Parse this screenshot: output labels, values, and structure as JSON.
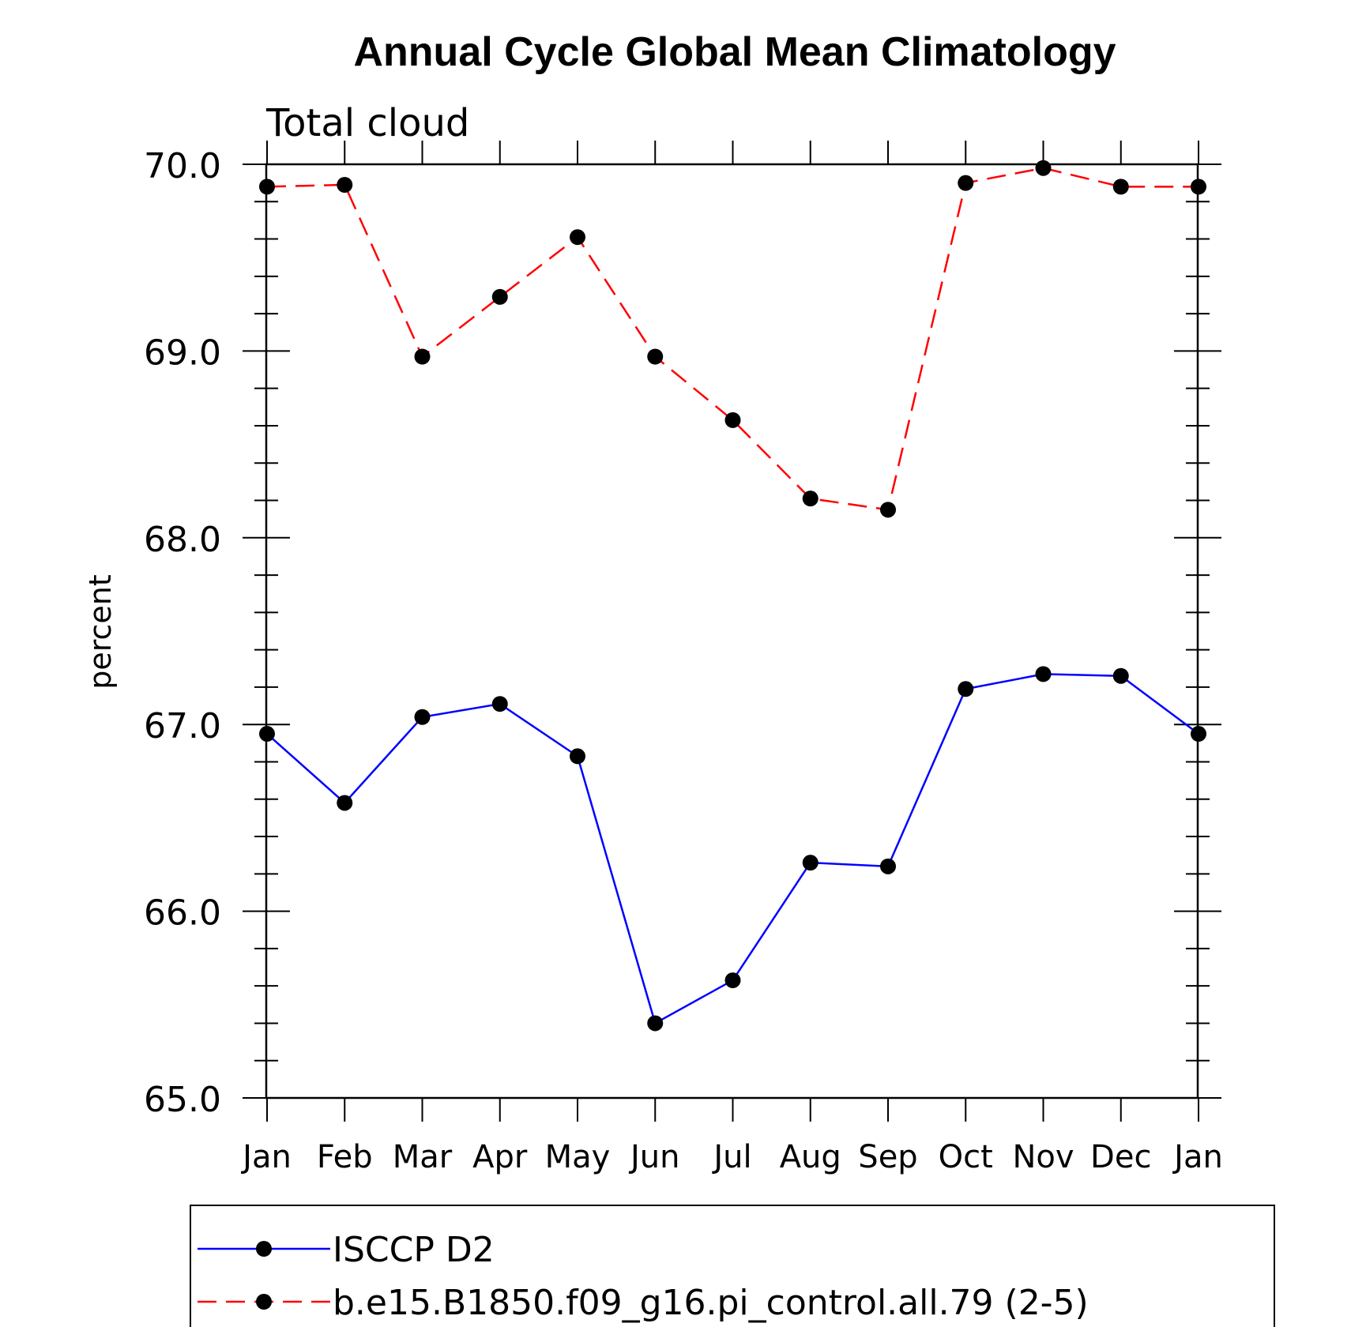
{
  "chart_data": {
    "type": "line",
    "title": "Annual Cycle Global Mean Climatology",
    "subtitle": "Total cloud",
    "xlabel": "",
    "ylabel": "percent",
    "categories": [
      "Jan",
      "Feb",
      "Mar",
      "Apr",
      "May",
      "Jun",
      "Jul",
      "Aug",
      "Sep",
      "Oct",
      "Nov",
      "Dec",
      "Jan"
    ],
    "ylim": [
      65.0,
      70.0
    ],
    "yticks": [
      "65.0",
      "66.0",
      "67.0",
      "68.0",
      "69.0",
      "70.0"
    ],
    "grid": false,
    "legend_position": "bottom",
    "series": [
      {
        "name": "ISCCP D2",
        "color": "#0000ff",
        "line_style": "solid",
        "marker": "filled-circle",
        "values": [
          66.95,
          66.58,
          67.04,
          67.11,
          66.83,
          65.4,
          65.63,
          66.26,
          66.24,
          67.19,
          67.27,
          67.26,
          66.95
        ]
      },
      {
        "name": "b.e15.B1850.f09_g16.pi_control.all.79 (2-5)",
        "color": "#ff0000",
        "line_style": "dashed",
        "marker": "filled-circle",
        "values": [
          69.88,
          69.89,
          68.97,
          69.29,
          69.61,
          68.97,
          68.63,
          68.21,
          68.15,
          69.9,
          69.98,
          69.88,
          69.88
        ]
      }
    ]
  }
}
